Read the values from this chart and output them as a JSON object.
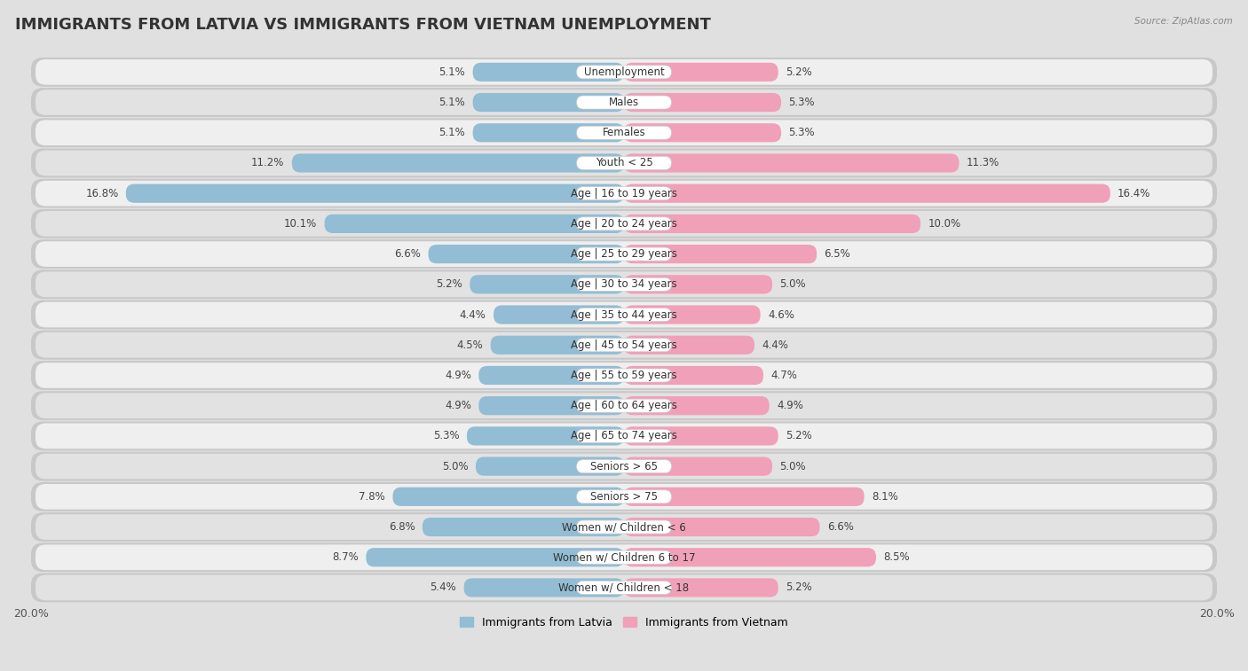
{
  "title": "IMMIGRANTS FROM LATVIA VS IMMIGRANTS FROM VIETNAM UNEMPLOYMENT",
  "source": "Source: ZipAtlas.com",
  "categories": [
    "Unemployment",
    "Males",
    "Females",
    "Youth < 25",
    "Age | 16 to 19 years",
    "Age | 20 to 24 years",
    "Age | 25 to 29 years",
    "Age | 30 to 34 years",
    "Age | 35 to 44 years",
    "Age | 45 to 54 years",
    "Age | 55 to 59 years",
    "Age | 60 to 64 years",
    "Age | 65 to 74 years",
    "Seniors > 65",
    "Seniors > 75",
    "Women w/ Children < 6",
    "Women w/ Children 6 to 17",
    "Women w/ Children < 18"
  ],
  "latvia_values": [
    5.1,
    5.1,
    5.1,
    11.2,
    16.8,
    10.1,
    6.6,
    5.2,
    4.4,
    4.5,
    4.9,
    4.9,
    5.3,
    5.0,
    7.8,
    6.8,
    8.7,
    5.4
  ],
  "vietnam_values": [
    5.2,
    5.3,
    5.3,
    11.3,
    16.4,
    10.0,
    6.5,
    5.0,
    4.6,
    4.4,
    4.7,
    4.9,
    5.2,
    5.0,
    8.1,
    6.6,
    8.5,
    5.2
  ],
  "latvia_color": "#92bdd4",
  "vietnam_color": "#f0a0b8",
  "latvia_label": "Immigrants from Latvia",
  "vietnam_label": "Immigrants from Vietnam",
  "axis_limit": 20.0,
  "bg_light": "#efefef",
  "bg_dark": "#e2e2e2",
  "row_outer_bg": "#d8d8d8",
  "title_fontsize": 13,
  "label_fontsize": 8.5,
  "value_fontsize": 8.5
}
